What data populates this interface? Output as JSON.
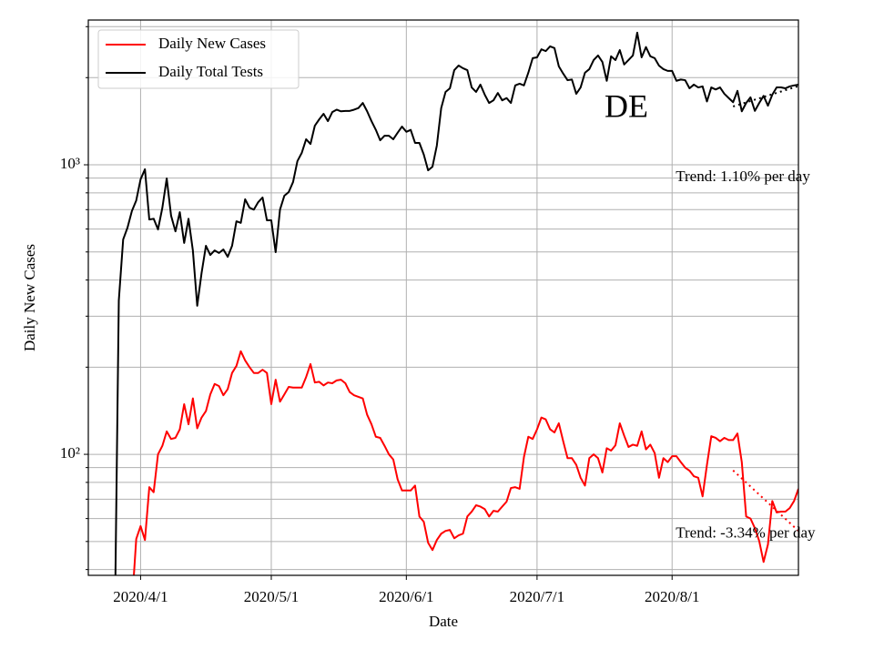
{
  "chart_data": {
    "type": "line",
    "annotation": "DE",
    "xlabel": "Date",
    "ylabel": "Daily New Cases",
    "log_y": true,
    "grid": true,
    "legend": "upper left",
    "xlim": [
      "2020/3/20",
      "2020/8/30"
    ],
    "xticks": [
      "2020/4/1",
      "2020/5/1",
      "2020/6/1",
      "2020/7/1",
      "2020/8/1"
    ],
    "ylim": [
      38.2,
      3162
    ],
    "yticks": [
      {
        "value": 100,
        "label": "10²"
      },
      {
        "value": 1000,
        "label": "10³"
      }
    ],
    "yticks_minor": [
      40,
      50,
      60,
      70,
      80,
      90,
      200,
      300,
      400,
      500,
      600,
      700,
      800,
      900,
      2000,
      3000
    ],
    "x": [
      "2020/3/26",
      "2020/3/27",
      "2020/3/28",
      "2020/3/29",
      "2020/3/30",
      "2020/3/31",
      "2020/4/1",
      "2020/4/2",
      "2020/4/3",
      "2020/4/4",
      "2020/4/5",
      "2020/4/6",
      "2020/4/7",
      "2020/4/8",
      "2020/4/9",
      "2020/4/10",
      "2020/4/11",
      "2020/4/12",
      "2020/4/13",
      "2020/4/14",
      "2020/4/15",
      "2020/4/16",
      "2020/4/17",
      "2020/4/18",
      "2020/4/19",
      "2020/4/20",
      "2020/4/21",
      "2020/4/22",
      "2020/4/23",
      "2020/4/24",
      "2020/4/25",
      "2020/4/26",
      "2020/4/27",
      "2020/4/28",
      "2020/4/29",
      "2020/4/30",
      "2020/5/1",
      "2020/5/2",
      "2020/5/3",
      "2020/5/4",
      "2020/5/5",
      "2020/5/6",
      "2020/5/7",
      "2020/5/8",
      "2020/5/9",
      "2020/5/10",
      "2020/5/11",
      "2020/5/12",
      "2020/5/13",
      "2020/5/14",
      "2020/5/15",
      "2020/5/16",
      "2020/5/17",
      "2020/5/18",
      "2020/5/19",
      "2020/5/20",
      "2020/5/21",
      "2020/5/22",
      "2020/5/23",
      "2020/5/24",
      "2020/5/25",
      "2020/5/26",
      "2020/5/27",
      "2020/5/28",
      "2020/5/29",
      "2020/5/30",
      "2020/5/31",
      "2020/6/1",
      "2020/6/2",
      "2020/6/3",
      "2020/6/4",
      "2020/6/5",
      "2020/6/6",
      "2020/6/7",
      "2020/6/8",
      "2020/6/9",
      "2020/6/10",
      "2020/6/11",
      "2020/6/12",
      "2020/6/13",
      "2020/6/14",
      "2020/6/15",
      "2020/6/16",
      "2020/6/17",
      "2020/6/18",
      "2020/6/19",
      "2020/6/20",
      "2020/6/21",
      "2020/6/22",
      "2020/6/23",
      "2020/6/24",
      "2020/6/25",
      "2020/6/26",
      "2020/6/27",
      "2020/6/28",
      "2020/6/29",
      "2020/6/30",
      "2020/7/1",
      "2020/7/2",
      "2020/7/3",
      "2020/7/4",
      "2020/7/5",
      "2020/7/6",
      "2020/7/7",
      "2020/7/8",
      "2020/7/9",
      "2020/7/10",
      "2020/7/11",
      "2020/7/12",
      "2020/7/13",
      "2020/7/14",
      "2020/7/15",
      "2020/7/16",
      "2020/7/17",
      "2020/7/18",
      "2020/7/19",
      "2020/7/20",
      "2020/7/21",
      "2020/7/22",
      "2020/7/23",
      "2020/7/24",
      "2020/7/25",
      "2020/7/26",
      "2020/7/27",
      "2020/7/28",
      "2020/7/29",
      "2020/7/30",
      "2020/7/31",
      "2020/8/1",
      "2020/8/2",
      "2020/8/3",
      "2020/8/4",
      "2020/8/5",
      "2020/8/6",
      "2020/8/7",
      "2020/8/8",
      "2020/8/9",
      "2020/8/10",
      "2020/8/11",
      "2020/8/12",
      "2020/8/13",
      "2020/8/14",
      "2020/8/15",
      "2020/8/16",
      "2020/8/17",
      "2020/8/18",
      "2020/8/19",
      "2020/8/20",
      "2020/8/21",
      "2020/8/22",
      "2020/8/23",
      "2020/8/24",
      "2020/8/25",
      "2020/8/26",
      "2020/8/27",
      "2020/8/28",
      "2020/8/29",
      "2020/8/30"
    ],
    "series": [
      {
        "name": "Daily New Cases",
        "color": "#ff0000",
        "values": [
          null,
          null,
          null,
          null,
          30,
          51,
          56.5,
          50.6,
          77,
          74,
          100,
          107,
          120,
          113,
          114,
          122,
          149,
          127,
          156,
          123,
          134,
          141,
          161,
          175,
          172,
          160,
          168,
          191,
          202,
          227,
          211,
          200,
          191,
          191,
          196,
          191,
          149,
          181,
          152,
          161,
          171,
          170,
          170,
          170,
          185,
          205,
          177,
          178,
          173,
          177,
          176,
          180,
          181,
          176,
          164,
          160,
          158,
          156,
          137,
          127,
          115,
          114,
          107,
          100,
          96,
          82,
          75,
          75,
          75,
          78,
          61,
          58.5,
          49.5,
          46.7,
          50.6,
          53.2,
          54.4,
          54.8,
          51.3,
          52.5,
          53.2,
          61,
          63.4,
          66.7,
          66,
          64.7,
          61,
          63.8,
          63.4,
          66,
          68.6,
          76.5,
          77,
          76,
          98,
          115,
          113,
          122,
          134,
          132,
          122,
          119,
          128,
          111,
          97,
          97,
          92,
          83,
          78,
          97,
          100,
          97,
          86.5,
          105,
          103,
          107.5,
          128,
          116,
          106,
          108,
          107,
          120,
          104,
          108,
          101,
          83,
          97,
          94,
          98.5,
          98.5,
          94,
          90,
          87.8,
          84,
          83,
          71.6,
          92,
          115.5,
          114,
          111,
          114,
          112,
          112,
          118,
          94,
          61,
          60,
          55.6,
          50.2,
          42.5,
          48.8,
          69,
          63,
          63.4,
          63.4,
          65.2,
          69,
          76
        ]
      },
      {
        "name": "Daily Total Tests",
        "color": "#000000",
        "values": [
          20,
          340,
          552,
          607,
          692,
          753,
          891,
          965,
          647,
          651,
          598,
          711,
          897,
          667,
          589,
          686,
          537,
          651,
          506,
          326,
          423,
          525,
          488,
          506,
          496,
          510,
          481,
          525,
          638,
          630,
          760,
          711,
          700,
          743,
          771,
          643,
          643,
          499,
          700,
          782,
          805,
          872,
          1030,
          1100,
          1225,
          1180,
          1365,
          1435,
          1500,
          1415,
          1520,
          1550,
          1530,
          1535,
          1535,
          1550,
          1570,
          1635,
          1530,
          1415,
          1320,
          1215,
          1260,
          1260,
          1225,
          1290,
          1355,
          1300,
          1320,
          1190,
          1190,
          1085,
          957,
          985,
          1165,
          1570,
          1785,
          1837,
          2123,
          2202,
          2155,
          2123,
          1850,
          1785,
          1892,
          1746,
          1635,
          1670,
          1770,
          1670,
          1700,
          1635,
          1880,
          1905,
          1880,
          2080,
          2335,
          2350,
          2505,
          2470,
          2565,
          2530,
          2188,
          2065,
          1960,
          1970,
          1758,
          1850,
          2080,
          2140,
          2300,
          2385,
          2265,
          1950,
          2370,
          2300,
          2490,
          2220,
          2300,
          2385,
          2860,
          2350,
          2550,
          2370,
          2335,
          2200,
          2140,
          2110,
          2110,
          1950,
          1970,
          1960,
          1837,
          1892,
          1850,
          1865,
          1655,
          1850,
          1820,
          1850,
          1758,
          1700,
          1645,
          1800,
          1530,
          1635,
          1710,
          1535,
          1635,
          1730,
          1600,
          1746,
          1850,
          1850,
          1837,
          1865,
          1880,
          1892
        ]
      }
    ],
    "trend_lines": [
      {
        "label": "Trend: 1.10% per day",
        "color": "#000000",
        "x": [
          "2020/8/15",
          "2020/8/30"
        ],
        "values": [
          1590,
          1870
        ]
      },
      {
        "label": "Trend: -3.34% per day",
        "color": "#ff0000",
        "x": [
          "2020/8/15",
          "2020/8/30"
        ],
        "values": [
          88,
          54.4
        ]
      }
    ]
  }
}
